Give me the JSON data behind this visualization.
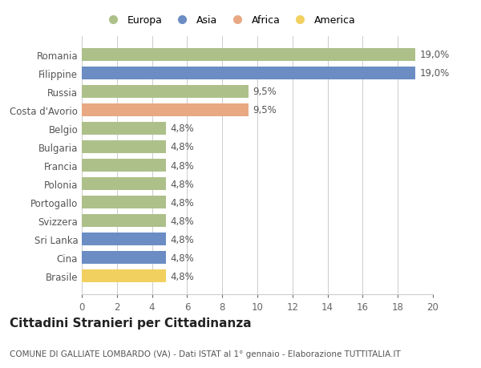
{
  "countries": [
    "Romania",
    "Filippine",
    "Russia",
    "Costa d'Avorio",
    "Belgio",
    "Bulgaria",
    "Francia",
    "Polonia",
    "Portogallo",
    "Svizzera",
    "Sri Lanka",
    "Cina",
    "Brasile"
  ],
  "values": [
    19.0,
    19.0,
    9.5,
    9.5,
    4.8,
    4.8,
    4.8,
    4.8,
    4.8,
    4.8,
    4.8,
    4.8,
    4.8
  ],
  "labels": [
    "19,0%",
    "19,0%",
    "9,5%",
    "9,5%",
    "4,8%",
    "4,8%",
    "4,8%",
    "4,8%",
    "4,8%",
    "4,8%",
    "4,8%",
    "4,8%",
    "4,8%"
  ],
  "continents": [
    "Europa",
    "Asia",
    "Europa",
    "Africa",
    "Europa",
    "Europa",
    "Europa",
    "Europa",
    "Europa",
    "Europa",
    "Asia",
    "Asia",
    "America"
  ],
  "colors": {
    "Europa": "#adc08a",
    "Asia": "#6b8dc4",
    "Africa": "#e8a882",
    "America": "#f2d060"
  },
  "legend_order": [
    "Europa",
    "Asia",
    "Africa",
    "America"
  ],
  "title": "Cittadini Stranieri per Cittadinanza",
  "subtitle": "COMUNE DI GALLIATE LOMBARDO (VA) - Dati ISTAT al 1° gennaio - Elaborazione TUTTITALIA.IT",
  "xlim": [
    0,
    20
  ],
  "xticks": [
    0,
    2,
    4,
    6,
    8,
    10,
    12,
    14,
    16,
    18,
    20
  ],
  "background_color": "#ffffff",
  "plot_bg_color": "#ffffff",
  "grid_color": "#cccccc",
  "bar_height": 0.72,
  "label_fontsize": 8.5,
  "tick_fontsize": 8.5,
  "title_fontsize": 11,
  "subtitle_fontsize": 7.5,
  "legend_fontsize": 9
}
